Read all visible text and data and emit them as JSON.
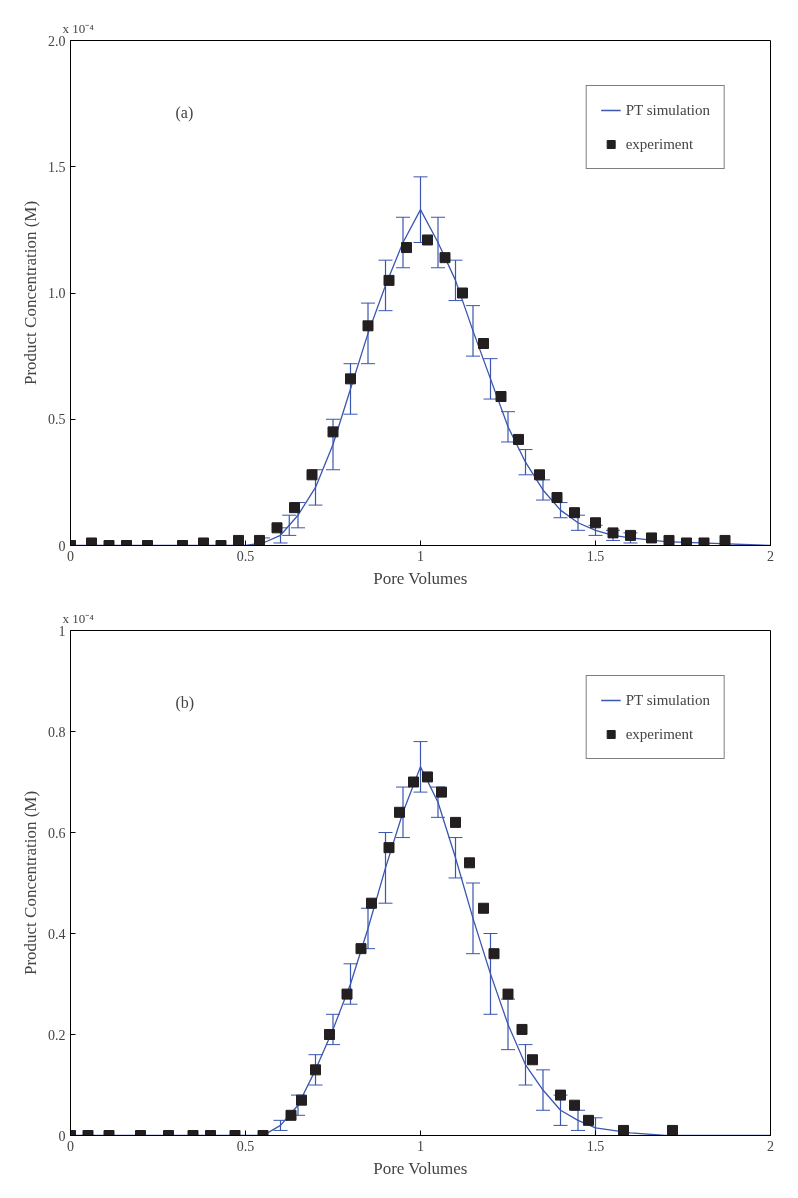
{
  "chart_data": [
    {
      "type": "line",
      "xlabel": "Pore Volumes",
      "ylabel": "Product Concentration (M)",
      "annotations": [
        "x 10⁻⁴",
        "(a)"
      ],
      "xlim": [
        0,
        2
      ],
      "xticks": [
        0,
        0.5,
        1,
        1.5,
        2
      ],
      "ylim": [
        0,
        2
      ],
      "yticks": [
        0,
        0.5,
        {
          "value": 1,
          "label": "1.0"
        },
        1.5,
        {
          "value": 2,
          "label": "2.0"
        }
      ],
      "grid": false,
      "legend": "top right",
      "series": [
        {
          "name": "PT simulation",
          "color": "#3a56b0",
          "marker": "none",
          "x": [
            0,
            0.5,
            0.55,
            0.6,
            0.625,
            0.65,
            0.7,
            0.75,
            0.8,
            0.85,
            0.9,
            0.95,
            1.0,
            1.05,
            1.1,
            1.15,
            1.2,
            1.25,
            1.3,
            1.35,
            1.4,
            1.45,
            1.5,
            1.55,
            1.6,
            1.7,
            1.8,
            2.0
          ],
          "values": [
            0,
            0,
            0.01,
            0.04,
            0.08,
            0.12,
            0.23,
            0.4,
            0.62,
            0.84,
            1.03,
            1.2,
            1.33,
            1.2,
            1.05,
            0.85,
            0.66,
            0.47,
            0.33,
            0.22,
            0.14,
            0.09,
            0.06,
            0.04,
            0.03,
            0.015,
            0.01,
            0
          ],
          "errors": [
            null,
            null,
            0.02,
            0.03,
            0.04,
            0.05,
            0.07,
            0.1,
            0.1,
            0.12,
            0.1,
            0.1,
            0.13,
            0.1,
            0.08,
            0.1,
            0.08,
            0.06,
            0.05,
            0.04,
            0.03,
            0.03,
            0.02,
            0.02,
            0.02,
            null,
            null,
            null
          ]
        },
        {
          "name": "experiment",
          "type": "scatter",
          "color": "#231f20",
          "marker": "square",
          "x": [
            0,
            0.06,
            0.11,
            0.16,
            0.22,
            0.32,
            0.38,
            0.43,
            0.48,
            0.54,
            0.59,
            0.64,
            0.69,
            0.75,
            0.8,
            0.85,
            0.91,
            0.96,
            1.02,
            1.07,
            1.12,
            1.18,
            1.23,
            1.28,
            1.34,
            1.39,
            1.44,
            1.5,
            1.55,
            1.6,
            1.66,
            1.71,
            1.76,
            1.81,
            1.87
          ],
          "values": [
            0,
            0.01,
            0,
            0,
            0,
            0,
            0.01,
            0,
            0.02,
            0.02,
            0.07,
            0.15,
            0.28,
            0.45,
            0.66,
            0.87,
            1.05,
            1.18,
            1.21,
            1.14,
            1.0,
            0.8,
            0.59,
            0.42,
            0.28,
            0.19,
            0.13,
            0.09,
            0.05,
            0.04,
            0.03,
            0.02,
            0.01,
            0.01,
            0.02
          ]
        }
      ]
    },
    {
      "type": "line",
      "xlabel": "Pore Volumes",
      "ylabel": "Product Concentration (M)",
      "annotations": [
        "x 10⁻⁴",
        "(b)"
      ],
      "xlim": [
        0,
        2
      ],
      "xticks": [
        0,
        0.5,
        1,
        1.5,
        2
      ],
      "ylim": [
        0,
        1
      ],
      "yticks": [
        0,
        0.2,
        0.4,
        0.6,
        0.8,
        1
      ],
      "grid": false,
      "legend": "top right",
      "series": [
        {
          "name": "PT simulation",
          "color": "#3a56b0",
          "marker": "none",
          "x": [
            0,
            0.55,
            0.6,
            0.65,
            0.7,
            0.75,
            0.8,
            0.85,
            0.9,
            0.95,
            1.0,
            1.05,
            1.1,
            1.15,
            1.2,
            1.25,
            1.3,
            1.35,
            1.4,
            1.45,
            1.5,
            1.6,
            1.7,
            2.0
          ],
          "values": [
            0,
            0,
            0.02,
            0.06,
            0.13,
            0.21,
            0.3,
            0.41,
            0.53,
            0.64,
            0.73,
            0.66,
            0.55,
            0.43,
            0.32,
            0.22,
            0.14,
            0.09,
            0.05,
            0.03,
            0.015,
            0.005,
            0,
            0
          ],
          "errors": [
            null,
            null,
            0.01,
            0.02,
            0.03,
            0.03,
            0.04,
            0.04,
            0.07,
            0.05,
            0.05,
            0.03,
            0.04,
            0.07,
            0.08,
            0.05,
            0.04,
            0.04,
            0.03,
            0.02,
            0.02,
            null,
            null,
            null
          ]
        },
        {
          "name": "experiment",
          "type": "scatter",
          "color": "#231f20",
          "marker": "square",
          "x": [
            0,
            0.05,
            0.11,
            0.2,
            0.28,
            0.35,
            0.4,
            0.47,
            0.55,
            0.63,
            0.66,
            0.7,
            0.74,
            0.79,
            0.83,
            0.86,
            0.91,
            0.94,
            0.98,
            1.02,
            1.06,
            1.1,
            1.14,
            1.18,
            1.21,
            1.25,
            1.29,
            1.32,
            1.4,
            1.44,
            1.48,
            1.58,
            1.72
          ],
          "values": [
            0,
            0,
            0,
            0,
            0,
            0,
            0,
            0,
            0,
            0.04,
            0.07,
            0.13,
            0.2,
            0.28,
            0.37,
            0.46,
            0.57,
            0.64,
            0.7,
            0.71,
            0.68,
            0.62,
            0.54,
            0.45,
            0.36,
            0.28,
            0.21,
            0.15,
            0.08,
            0.06,
            0.03,
            0.01,
            0.01
          ]
        }
      ]
    }
  ]
}
